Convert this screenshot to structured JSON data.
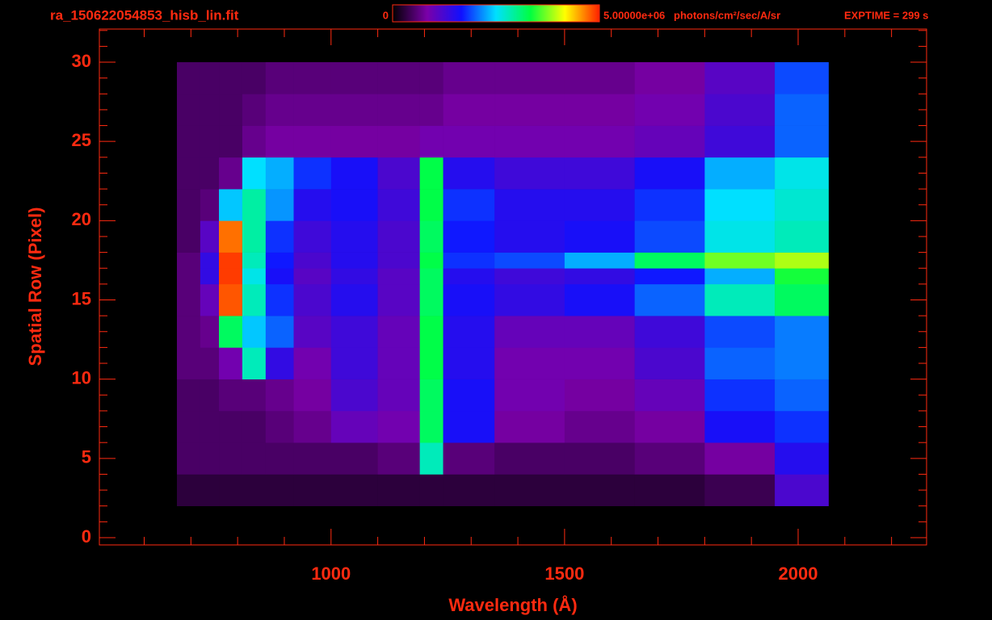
{
  "chart_data": {
    "type": "heatmap",
    "title": "ra_150622054853_hisb_lin.fit",
    "exposure": "EXPTIME = 299 s",
    "x_label": "Wavelength (Å)",
    "y_label": "Spatial Row (Pixel)",
    "colorbar_unit": "photons/cm²/sec/A/sr",
    "zlim": [
      0,
      5000000
    ],
    "zticks": [
      0,
      {
        "value": 5000000,
        "label": "5.00000e+06"
      }
    ],
    "colorscale": [
      "#000000",
      "#7a00a8",
      "#1010ff",
      "#00e0ff",
      "#00ff40",
      "#ffff00",
      "#ff2000"
    ],
    "axis_color": "#ff2a10",
    "xlim": [
      504,
      2275
    ],
    "ylim": [
      -0.46,
      32.09
    ],
    "xticks": [
      1000,
      1500,
      2000
    ],
    "yticks": [
      0,
      5,
      10,
      15,
      20,
      25,
      30
    ],
    "xminorticks": [
      600,
      700,
      800,
      900,
      1100,
      1200,
      1300,
      1400,
      1600,
      1700,
      1800,
      1900,
      2100,
      2200
    ],
    "yminorticks": [
      1,
      2,
      3,
      4,
      6,
      7,
      8,
      9,
      11,
      12,
      13,
      14,
      16,
      17,
      18,
      19,
      21,
      22,
      23,
      24,
      26,
      27,
      28,
      29,
      31,
      32
    ],
    "xedges": [
      670,
      720,
      760,
      810,
      860,
      920,
      1000,
      1100,
      1190,
      1240,
      1350,
      1500,
      1650,
      1800,
      1950,
      2065
    ],
    "yedges": [
      2,
      4,
      6,
      8,
      10,
      12,
      14,
      16,
      17,
      18,
      20,
      22,
      24,
      26,
      28,
      30
    ],
    "z": [
      [
        300000,
        300000,
        300000,
        300000,
        300000,
        300000,
        300000,
        300000,
        300000,
        300000,
        300000,
        300000,
        300000,
        400000,
        1200000
      ],
      [
        500000,
        500000,
        500000,
        500000,
        500000,
        500000,
        500000,
        600000,
        2800000,
        600000,
        500000,
        500000,
        600000,
        800000,
        1500000
      ],
      [
        500000,
        500000,
        500000,
        500000,
        600000,
        700000,
        1000000,
        900000,
        3200000,
        1600000,
        800000,
        700000,
        800000,
        1600000,
        1800000
      ],
      [
        500000,
        500000,
        600000,
        600000,
        700000,
        800000,
        1200000,
        1000000,
        3200000,
        1600000,
        900000,
        800000,
        1000000,
        1800000,
        2000000
      ],
      [
        600000,
        600000,
        900000,
        2800000,
        1400000,
        900000,
        1300000,
        1000000,
        3300000,
        1500000,
        900000,
        900000,
        1200000,
        2000000,
        2100000
      ],
      [
        600000,
        700000,
        3200000,
        2400000,
        2000000,
        1100000,
        1300000,
        1000000,
        3300000,
        1500000,
        1000000,
        1000000,
        1300000,
        1900000,
        2100000
      ],
      [
        600000,
        1000000,
        4800000,
        2800000,
        1800000,
        1200000,
        1500000,
        1100000,
        3200000,
        1600000,
        1400000,
        1600000,
        2000000,
        2800000,
        3200000
      ],
      [
        600000,
        1400000,
        4900000,
        2600000,
        1600000,
        1100000,
        1400000,
        1100000,
        3200000,
        1500000,
        1300000,
        1400000,
        1700000,
        2300000,
        3400000
      ],
      [
        600000,
        1400000,
        4900000,
        2800000,
        1700000,
        1200000,
        1500000,
        1200000,
        3300000,
        1800000,
        1900000,
        2300000,
        3200000,
        3700000,
        3900000
      ],
      [
        500000,
        1100000,
        4700000,
        2900000,
        1800000,
        1300000,
        1500000,
        1200000,
        3200000,
        1700000,
        1500000,
        1600000,
        1900000,
        2600000,
        2800000
      ],
      [
        500000,
        600000,
        2400000,
        2900000,
        2200000,
        1500000,
        1600000,
        1300000,
        3300000,
        1800000,
        1500000,
        1500000,
        1800000,
        2500000,
        2700000
      ],
      [
        500000,
        500000,
        700000,
        2500000,
        2300000,
        1800000,
        1600000,
        1200000,
        3300000,
        1500000,
        1300000,
        1300000,
        1600000,
        2300000,
        2600000
      ],
      [
        500000,
        500000,
        500000,
        700000,
        800000,
        800000,
        800000,
        800000,
        900000,
        900000,
        900000,
        900000,
        1000000,
        1300000,
        2000000
      ],
      [
        500000,
        500000,
        500000,
        600000,
        700000,
        700000,
        700000,
        700000,
        700000,
        800000,
        800000,
        800000,
        900000,
        1200000,
        2000000
      ],
      [
        500000,
        500000,
        500000,
        500000,
        600000,
        600000,
        600000,
        600000,
        600000,
        700000,
        700000,
        700000,
        800000,
        1100000,
        1900000
      ]
    ]
  }
}
